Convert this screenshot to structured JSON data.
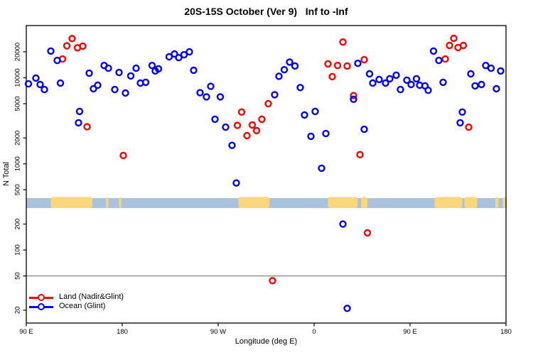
{
  "title": "20S-15S October (Ver 9)   Inf to -Inf",
  "axes": {
    "y_label": "N Total",
    "x_label": "Longitude (deg E)"
  },
  "legend": {
    "items": [
      {
        "label": "Land (Nadir&Glint)",
        "color": "#ff0000"
      },
      {
        "label": "Ocean (Glint)",
        "color": "#0000ff"
      }
    ]
  },
  "colors": {
    "land_series": "#ff0000",
    "ocean_series": "#0000ff",
    "strip_ocean": "#a9c2de",
    "strip_land": "#fbd77c",
    "reference_line": "#858585",
    "axis": "#000000"
  },
  "chart_data": {
    "type": "scatter",
    "title": "20S-15S October (Ver 9)   Inf to -Inf",
    "xlabel": "Longitude (deg E)",
    "ylabel": "N Total",
    "y_scale": "log",
    "y_ticks": [
      20000,
      10000,
      5000,
      2000,
      1000,
      500,
      200,
      100,
      50,
      20
    ],
    "ylim": [
      15,
      40000
    ],
    "x_ticks": [
      {
        "label": "90 E",
        "deg": 90
      },
      {
        "label": "180",
        "deg": 180
      },
      {
        "label": "90 W",
        "deg": 270
      },
      {
        "label": "0",
        "deg": 360
      },
      {
        "label": "90 E",
        "deg": 450
      },
      {
        "label": "180",
        "deg": 540
      }
    ],
    "xlim_deg": [
      90,
      540
    ],
    "reference_line_n": 50,
    "grid": false,
    "legend_position": "bottom-left",
    "series": [
      {
        "name": "Land (Nadir&Glint)",
        "color": "#ff0000",
        "points": [
          [
            133,
            28500
          ],
          [
            128,
            23500
          ],
          [
            138,
            22300
          ],
          [
            143,
            23300
          ],
          [
            124,
            16500
          ],
          [
            147,
            2700
          ],
          [
            181,
            1250
          ],
          [
            292,
            4000
          ],
          [
            288,
            2800
          ],
          [
            302,
            2830
          ],
          [
            306,
            2430
          ],
          [
            297,
            2130
          ],
          [
            311,
            3300
          ],
          [
            317,
            5000
          ],
          [
            387,
            26000
          ],
          [
            373,
            14500
          ],
          [
            382,
            13900
          ],
          [
            391,
            13700
          ],
          [
            377,
            10300
          ],
          [
            407,
            16200
          ],
          [
            397,
            6200
          ],
          [
            403,
            1280
          ],
          [
            410,
            158
          ],
          [
            321,
            44
          ],
          [
            483,
            16500
          ],
          [
            487,
            23700
          ],
          [
            491,
            28700
          ],
          [
            495,
            22400
          ],
          [
            500,
            23700
          ],
          [
            505,
            2670
          ]
        ]
      },
      {
        "name": "Ocean (Glint)",
        "color": "#0000ff",
        "points": [
          [
            113,
            20400
          ],
          [
            119,
            15900
          ],
          [
            99,
            9900
          ],
          [
            92,
            8500
          ],
          [
            103,
            8350
          ],
          [
            107,
            7300
          ],
          [
            122,
            8670
          ],
          [
            149,
            11300
          ],
          [
            153,
            7450
          ],
          [
            157,
            8200
          ],
          [
            163,
            13900
          ],
          [
            167,
            12900
          ],
          [
            173,
            7300
          ],
          [
            177,
            11500
          ],
          [
            183,
            6650
          ],
          [
            188,
            10500
          ],
          [
            193,
            12900
          ],
          [
            197,
            8670
          ],
          [
            202,
            8850
          ],
          [
            208,
            13900
          ],
          [
            211,
            12000
          ],
          [
            214,
            12700
          ],
          [
            140,
            4070
          ],
          [
            139,
            3000
          ],
          [
            224,
            17500
          ],
          [
            229,
            18900
          ],
          [
            233,
            17100
          ],
          [
            238,
            18500
          ],
          [
            243,
            20000
          ],
          [
            247,
            12200
          ],
          [
            253,
            6700
          ],
          [
            259,
            6000
          ],
          [
            263,
            7950
          ],
          [
            272,
            6000
          ],
          [
            267,
            3300
          ],
          [
            277,
            2670
          ],
          [
            283,
            1640
          ],
          [
            287,
            600
          ],
          [
            323,
            6350
          ],
          [
            327,
            10400
          ],
          [
            332,
            12400
          ],
          [
            337,
            15200
          ],
          [
            342,
            13700
          ],
          [
            347,
            7700
          ],
          [
            351,
            3700
          ],
          [
            361,
            4070
          ],
          [
            357,
            2090
          ],
          [
            371,
            2250
          ],
          [
            367,
            890
          ],
          [
            387,
            200
          ],
          [
            391,
            21
          ],
          [
            397,
            5630
          ],
          [
            401,
            14700
          ],
          [
            407,
            2520
          ],
          [
            412,
            11100
          ],
          [
            415,
            8670
          ],
          [
            421,
            9560
          ],
          [
            427,
            8670
          ],
          [
            431,
            9740
          ],
          [
            437,
            10700
          ],
          [
            441,
            7300
          ],
          [
            447,
            9380
          ],
          [
            451,
            8350
          ],
          [
            456,
            9740
          ],
          [
            459,
            8200
          ],
          [
            464,
            8050
          ],
          [
            467,
            7150
          ],
          [
            472,
            20400
          ],
          [
            477,
            15900
          ],
          [
            481,
            8850
          ],
          [
            497,
            3000
          ],
          [
            499,
            4000
          ],
          [
            507,
            11100
          ],
          [
            511,
            8050
          ],
          [
            517,
            8350
          ],
          [
            521,
            13900
          ],
          [
            526,
            12900
          ],
          [
            531,
            7450
          ],
          [
            535,
            12000
          ]
        ]
      }
    ],
    "map_strip": {
      "description": "land-ocean map band",
      "ocean_color": "#a9c2de",
      "land_color": "#fbd77c",
      "land_segments_deg": [
        [
          113,
          152
        ],
        [
          165,
          167
        ],
        [
          177,
          179
        ],
        [
          289,
          318
        ],
        [
          373,
          401
        ],
        [
          404,
          410
        ],
        [
          473,
          499
        ],
        [
          501,
          513
        ],
        [
          530,
          533
        ],
        [
          537,
          540
        ]
      ]
    }
  }
}
